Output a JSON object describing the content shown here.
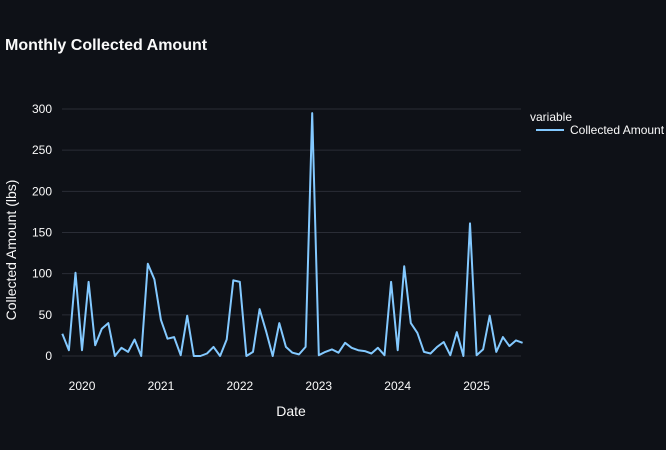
{
  "chart_data": {
    "type": "line",
    "title": "Monthly Collected Amount",
    "xlabel": "Date",
    "ylabel": "Collected Amount (lbs)",
    "ylim": [
      0,
      300
    ],
    "yticks": [
      "0",
      "50",
      "100",
      "150",
      "200",
      "250",
      "300"
    ],
    "xticks": [
      "2020",
      "2021",
      "2022",
      "2023",
      "2024",
      "2025"
    ],
    "xrange": [
      "2019-10",
      "2025-08"
    ],
    "grid": true,
    "legend": {
      "title": "variable",
      "placement": "right"
    },
    "colors": {
      "background": "#0e1117",
      "line": "#83c9ff",
      "grid": "#2a2d36"
    },
    "series": [
      {
        "name": "Collected Amount",
        "x": [
          "2019-10",
          "2019-11",
          "2019-12",
          "2020-01",
          "2020-02",
          "2020-03",
          "2020-04",
          "2020-05",
          "2020-06",
          "2020-07",
          "2020-08",
          "2020-09",
          "2020-10",
          "2020-11",
          "2020-12",
          "2021-01",
          "2021-02",
          "2021-03",
          "2021-04",
          "2021-05",
          "2021-06",
          "2021-07",
          "2021-08",
          "2021-09",
          "2021-10",
          "2021-11",
          "2021-12",
          "2022-01",
          "2022-02",
          "2022-03",
          "2022-04",
          "2022-05",
          "2022-06",
          "2022-07",
          "2022-08",
          "2022-09",
          "2022-10",
          "2022-11",
          "2022-12",
          "2023-01",
          "2023-02",
          "2023-03",
          "2023-04",
          "2023-05",
          "2023-06",
          "2023-07",
          "2023-08",
          "2023-09",
          "2023-10",
          "2023-11",
          "2023-12",
          "2024-01",
          "2024-02",
          "2024-03",
          "2024-04",
          "2024-05",
          "2024-06",
          "2024-07",
          "2024-08",
          "2024-09",
          "2024-10",
          "2024-11",
          "2024-12",
          "2025-01",
          "2025-02",
          "2025-03",
          "2025-04",
          "2025-05",
          "2025-06",
          "2025-07",
          "2025-08"
        ],
        "values": [
          27,
          7,
          101,
          7,
          90,
          13,
          33,
          40,
          0,
          10,
          5,
          20,
          0,
          112,
          93,
          44,
          21,
          23,
          1,
          49,
          0,
          0,
          3,
          11,
          0,
          20,
          92,
          90,
          0,
          5,
          57,
          30,
          0,
          40,
          11,
          4,
          2,
          11,
          295,
          1,
          5,
          8,
          4,
          16,
          10,
          7,
          6,
          3,
          10,
          1,
          90,
          7,
          109,
          40,
          28,
          5,
          3,
          11,
          17,
          1,
          29,
          0,
          161,
          1,
          8,
          49,
          5,
          23,
          12,
          19,
          16
        ]
      }
    ]
  }
}
